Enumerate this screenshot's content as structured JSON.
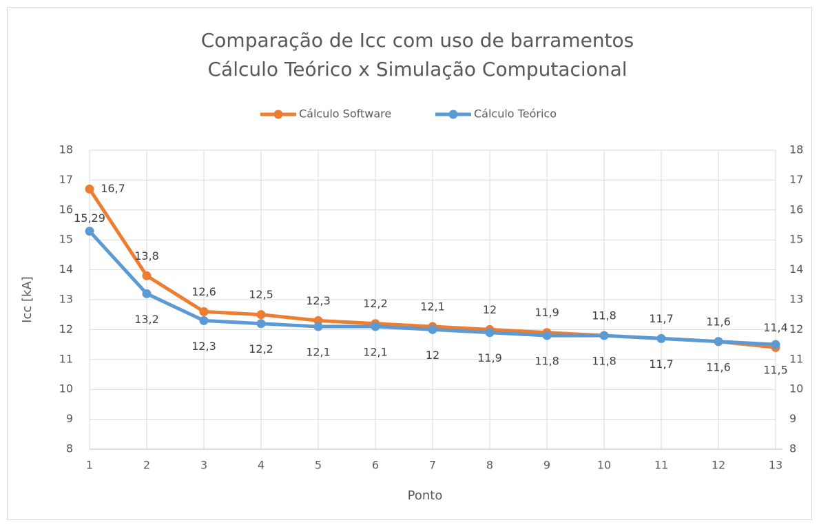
{
  "chart_data": {
    "type": "line",
    "title": "Comparação de Icc com uso de barramentos",
    "subtitle": "Cálculo Teórico x Simulação Computacional",
    "xlabel": "Ponto",
    "ylabel": "Icc [kA]",
    "x": [
      1,
      2,
      3,
      4,
      5,
      6,
      7,
      8,
      9,
      10,
      11,
      12,
      13
    ],
    "xlim": [
      1,
      13
    ],
    "xticks": [
      1,
      2,
      3,
      4,
      5,
      6,
      7,
      8,
      9,
      10,
      11,
      12,
      13
    ],
    "ylim": [
      8,
      18
    ],
    "yticks": [
      8,
      9,
      10,
      11,
      12,
      13,
      14,
      15,
      16,
      17,
      18
    ],
    "y2lim": [
      8,
      18
    ],
    "y2ticks": [
      8,
      9,
      10,
      11,
      12,
      13,
      14,
      15,
      16,
      17,
      18
    ],
    "grid": true,
    "legend": "top",
    "series": [
      {
        "name": "Cálculo Software",
        "color": "#ed7d31",
        "values": [
          16.7,
          13.8,
          12.6,
          12.5,
          12.3,
          12.2,
          12.1,
          12,
          11.9,
          11.8,
          11.7,
          11.6,
          11.4
        ],
        "value_labels": [
          "16,7",
          "13,8",
          "12,6",
          "12,5",
          "12,3",
          "12,2",
          "12,1",
          "12",
          "11,9",
          "11,8",
          "11,7",
          "11,6",
          "11,4"
        ]
      },
      {
        "name": "Cálculo Teórico",
        "color": "#5b9bd5",
        "axis": "y2",
        "values": [
          15.29,
          13.2,
          12.3,
          12.2,
          12.1,
          12.1,
          12,
          11.9,
          11.8,
          11.8,
          11.7,
          11.6,
          11.5
        ],
        "value_labels": [
          "15,29",
          "13,2",
          "12,3",
          "12,2",
          "12,1",
          "12,1",
          "12",
          "11,9",
          "11,8",
          "11,8",
          "11,7",
          "11,6",
          "11,5"
        ]
      }
    ]
  }
}
